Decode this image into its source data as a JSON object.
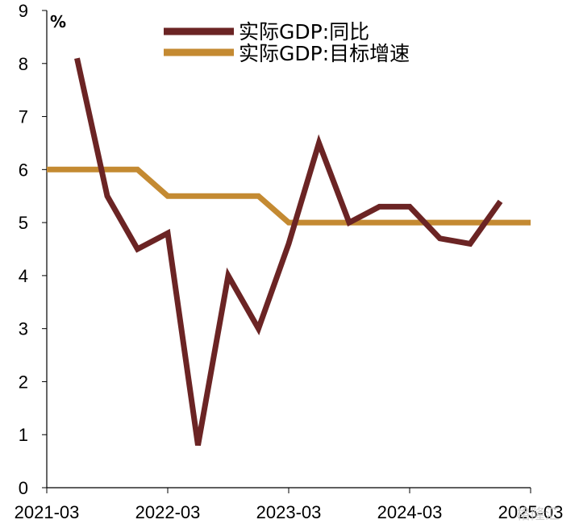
{
  "chart_data": {
    "type": "line",
    "ylabel": "%",
    "ylim": [
      0,
      9
    ],
    "yticks": [
      0,
      1,
      2,
      3,
      4,
      5,
      6,
      7,
      8,
      9
    ],
    "x_tick_labels": [
      "2021-03",
      "2022-03",
      "2023-03",
      "2024-03",
      "2025-03"
    ],
    "x": [
      "2021-03",
      "2021-06",
      "2021-09",
      "2021-12",
      "2022-03",
      "2022-06",
      "2022-09",
      "2022-12",
      "2023-03",
      "2023-06",
      "2023-09",
      "2023-12",
      "2024-03",
      "2024-06",
      "2024-09",
      "2024-12",
      "2025-03"
    ],
    "series": [
      {
        "name": "实际GDP:同比",
        "color": "#6b2424",
        "values": [
          null,
          8.1,
          5.5,
          4.5,
          4.8,
          0.8,
          4.0,
          3.0,
          4.6,
          6.5,
          5.0,
          5.3,
          5.3,
          4.7,
          4.6,
          5.4,
          null
        ]
      },
      {
        "name": "实际GDP:目标增速",
        "color": "#c48a32",
        "values": [
          6.0,
          6.0,
          6.0,
          6.0,
          5.5,
          5.5,
          5.5,
          5.5,
          5.0,
          5.0,
          5.0,
          5.0,
          5.0,
          5.0,
          5.0,
          5.0,
          5.0
        ]
      }
    ],
    "grid": false,
    "legend_position": "top-center"
  },
  "watermark": "格隆汇"
}
